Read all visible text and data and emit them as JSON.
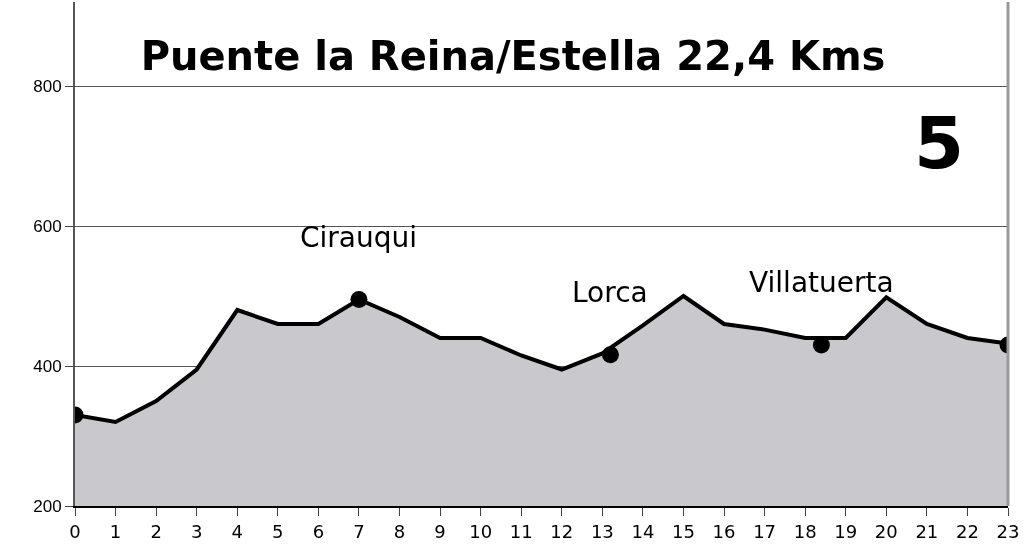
{
  "chart_data": {
    "type": "area",
    "title": "Puente la Reina/Estella 22,4 Kms",
    "x": [
      0,
      1,
      2,
      3,
      4,
      5,
      6,
      7,
      8,
      9,
      10,
      11,
      12,
      13,
      14,
      15,
      16,
      17,
      18,
      19,
      20,
      21,
      22,
      23
    ],
    "series": [
      {
        "color": "#c8c8cd",
        "values": [
          330,
          320,
          350,
          395,
          480,
          460,
          460,
          495,
          470,
          440,
          440,
          415,
          395,
          418,
          458,
          500,
          460,
          452,
          440,
          440,
          498,
          460,
          440,
          432
        ]
      },
      {
        "type": "scatter",
        "marker": "circle",
        "color": "#000000",
        "x": [
          0,
          7,
          13.2,
          18.4,
          23
        ],
        "values": [
          330,
          495,
          416,
          430,
          430
        ]
      }
    ],
    "annotations": [
      "5",
      {
        "text": "Cirauqui",
        "x": 7,
        "y": 495
      },
      {
        "text": "Lorca",
        "x": 13.2,
        "y": 416
      },
      {
        "text": "Villatuerta",
        "x": 18.4,
        "y": 430
      }
    ],
    "xlim": [
      0,
      23
    ],
    "xticks": [
      0,
      1,
      2,
      3,
      4,
      5,
      6,
      7,
      8,
      9,
      10,
      11,
      12,
      13,
      14,
      15,
      16,
      17,
      18,
      19,
      20,
      21,
      22,
      23
    ],
    "ylim": [
      200,
      920
    ],
    "yticks": [
      200,
      400,
      600,
      800
    ],
    "grid": "y",
    "line_style": "solid"
  }
}
